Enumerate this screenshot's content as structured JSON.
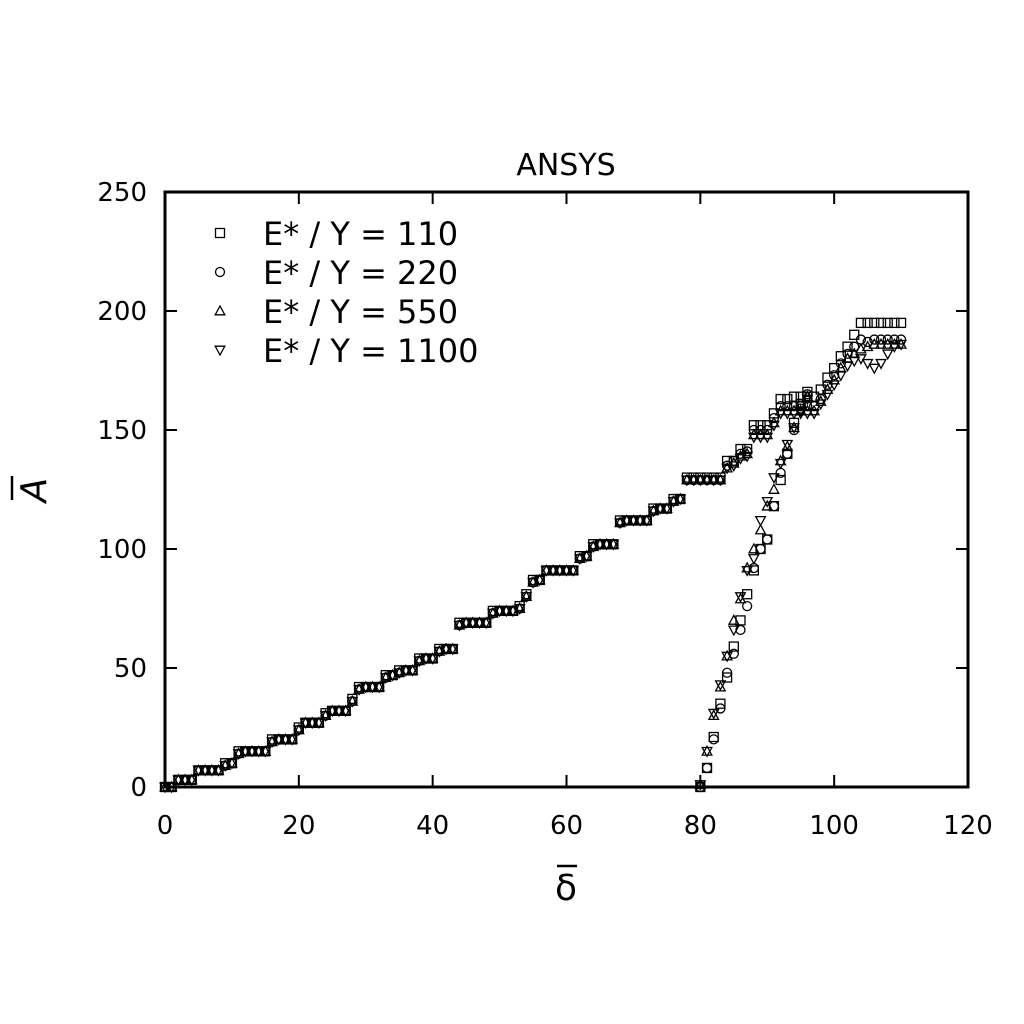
{
  "chart_data": {
    "type": "scatter",
    "title": "ANSYS",
    "xlabel": "δ",
    "ylabel": "A",
    "xlim": [
      0,
      120
    ],
    "ylim": [
      0,
      250
    ],
    "xticks": [
      0,
      20,
      40,
      60,
      80,
      100,
      120
    ],
    "yticks": [
      0,
      50,
      100,
      150,
      200,
      250
    ],
    "grid": false,
    "legend_position": "top-left",
    "series": [
      {
        "name": "E* / Y = 110",
        "marker": "square",
        "loading_x": [
          0,
          1,
          2,
          3,
          4,
          5,
          6,
          7,
          8,
          9,
          10,
          11,
          12,
          13,
          14,
          15,
          16,
          17,
          18,
          19,
          20,
          21,
          22,
          23,
          24,
          25,
          26,
          27,
          28,
          29,
          30,
          31,
          32,
          33,
          34,
          35,
          36,
          37,
          38,
          39,
          40,
          41,
          42,
          43,
          44,
          45,
          46,
          47,
          48,
          49,
          50,
          51,
          52,
          53,
          54,
          55,
          56,
          57,
          58,
          59,
          60,
          61,
          62,
          63,
          64,
          65,
          66,
          67,
          68,
          69,
          70,
          71,
          72,
          73,
          74,
          75,
          76,
          77,
          78,
          79,
          80,
          81,
          82,
          83,
          84,
          85,
          86,
          87,
          88,
          89,
          90,
          91,
          92,
          93,
          94,
          95,
          96,
          97,
          98,
          99,
          100,
          101,
          102,
          103,
          104,
          105,
          106,
          107,
          108,
          109,
          110
        ],
        "loading_y": [
          0,
          0,
          3,
          3,
          3,
          7,
          7,
          7,
          7,
          10,
          10,
          15,
          15,
          15,
          15,
          15,
          20,
          20,
          20,
          20,
          25,
          27,
          27,
          27,
          31,
          32,
          32,
          32,
          37,
          42,
          42,
          42,
          42,
          47,
          47,
          49,
          49,
          49,
          54,
          54,
          54,
          58,
          58,
          58,
          69,
          69,
          69,
          69,
          69,
          74,
          74,
          74,
          74,
          76,
          81,
          87,
          87,
          91,
          91,
          91,
          91,
          91,
          97,
          97,
          102,
          102,
          102,
          102,
          112,
          112,
          112,
          112,
          112,
          117,
          117,
          117,
          121,
          121,
          130,
          130,
          130,
          130,
          130,
          130,
          137,
          137,
          142,
          142,
          152,
          152,
          152,
          157,
          163,
          163,
          164,
          164,
          164,
          164,
          167,
          172,
          176,
          181,
          185,
          190,
          195,
          195,
          195,
          195,
          195,
          195,
          195
        ],
        "unloading_x": [
          80,
          81,
          82,
          83,
          84,
          85,
          86,
          87,
          88,
          89,
          90,
          91,
          92,
          93,
          94,
          95,
          96
        ],
        "unloading_y": [
          0,
          8,
          21,
          35,
          46,
          59,
          70,
          81,
          91,
          100,
          104,
          118,
          129,
          140,
          153,
          161,
          166
        ]
      },
      {
        "name": "E* / Y = 220",
        "marker": "circle",
        "loading_x": [
          0,
          1,
          2,
          3,
          4,
          5,
          6,
          7,
          8,
          9,
          10,
          11,
          12,
          13,
          14,
          15,
          16,
          17,
          18,
          19,
          20,
          21,
          22,
          23,
          24,
          25,
          26,
          27,
          28,
          29,
          30,
          31,
          32,
          33,
          34,
          35,
          36,
          37,
          38,
          39,
          40,
          41,
          42,
          43,
          44,
          45,
          46,
          47,
          48,
          49,
          50,
          51,
          52,
          53,
          54,
          55,
          56,
          57,
          58,
          59,
          60,
          61,
          62,
          63,
          64,
          65,
          66,
          67,
          68,
          69,
          70,
          71,
          72,
          73,
          74,
          75,
          76,
          77,
          78,
          79,
          80,
          81,
          82,
          83,
          84,
          85,
          86,
          87,
          88,
          89,
          90,
          91,
          92,
          93,
          94,
          95,
          96,
          97,
          98,
          99,
          100,
          101,
          102,
          103,
          104,
          105,
          106,
          107,
          108,
          109,
          110
        ],
        "loading_y": [
          0,
          0,
          3,
          3,
          3,
          7,
          7,
          7,
          7,
          9,
          10,
          14,
          15,
          15,
          15,
          15,
          19,
          20,
          20,
          20,
          24,
          27,
          27,
          27,
          30,
          32,
          32,
          32,
          36,
          41,
          42,
          42,
          42,
          46,
          47,
          48,
          49,
          49,
          53,
          54,
          54,
          57,
          58,
          58,
          68,
          69,
          69,
          69,
          69,
          73,
          74,
          74,
          74,
          75,
          80,
          86,
          87,
          91,
          91,
          91,
          91,
          91,
          96,
          97,
          101,
          102,
          102,
          102,
          111,
          112,
          112,
          112,
          112,
          116,
          117,
          117,
          120,
          121,
          129,
          129,
          129,
          129,
          129,
          129,
          135,
          137,
          140,
          141,
          150,
          150,
          150,
          155,
          160,
          160,
          160,
          160,
          160,
          160,
          163,
          169,
          173,
          178,
          182,
          185,
          188,
          187,
          188,
          188,
          188,
          188,
          188
        ],
        "unloading_x": [
          80,
          81,
          82,
          83,
          84,
          85,
          86,
          87,
          88,
          89,
          90,
          91,
          92,
          93,
          94,
          95,
          96
        ],
        "unloading_y": [
          0,
          8,
          20,
          33,
          48,
          56,
          66,
          76,
          92,
          100,
          104,
          118,
          132,
          140,
          150,
          159,
          165
        ]
      },
      {
        "name": "E* / Y = 550",
        "marker": "triangle-up",
        "loading_x": [
          0,
          1,
          2,
          3,
          4,
          5,
          6,
          7,
          8,
          9,
          10,
          11,
          12,
          13,
          14,
          15,
          16,
          17,
          18,
          19,
          20,
          21,
          22,
          23,
          24,
          25,
          26,
          27,
          28,
          29,
          30,
          31,
          32,
          33,
          34,
          35,
          36,
          37,
          38,
          39,
          40,
          41,
          42,
          43,
          44,
          45,
          46,
          47,
          48,
          49,
          50,
          51,
          52,
          53,
          54,
          55,
          56,
          57,
          58,
          59,
          60,
          61,
          62,
          63,
          64,
          65,
          66,
          67,
          68,
          69,
          70,
          71,
          72,
          73,
          74,
          75,
          76,
          77,
          78,
          79,
          80,
          81,
          82,
          83,
          84,
          85,
          86,
          87,
          88,
          89,
          90,
          91,
          92,
          93,
          94,
          95,
          96,
          97,
          98,
          99,
          100,
          101,
          102,
          103,
          104,
          105,
          106,
          107,
          108,
          109,
          110
        ],
        "loading_y": [
          0,
          0,
          3,
          3,
          3,
          7,
          7,
          7,
          7,
          9,
          10,
          14,
          15,
          15,
          15,
          15,
          19,
          20,
          20,
          20,
          24,
          27,
          27,
          27,
          30,
          32,
          32,
          32,
          36,
          41,
          42,
          42,
          42,
          46,
          47,
          48,
          49,
          49,
          53,
          54,
          54,
          57,
          58,
          58,
          68,
          69,
          69,
          69,
          69,
          73,
          74,
          74,
          74,
          75,
          80,
          86,
          87,
          91,
          91,
          91,
          91,
          91,
          96,
          97,
          101,
          102,
          102,
          102,
          111,
          112,
          112,
          112,
          112,
          116,
          117,
          117,
          120,
          121,
          129,
          129,
          129,
          129,
          129,
          129,
          134,
          136,
          139,
          140,
          148,
          148,
          148,
          153,
          158,
          158,
          158,
          158,
          158,
          158,
          162,
          167,
          171,
          176,
          180,
          182,
          184,
          185,
          186,
          186,
          186,
          186,
          186
        ],
        "unloading_x": [
          80,
          81,
          82,
          83,
          84,
          85,
          86,
          87,
          88,
          89,
          90,
          91,
          92,
          93,
          94,
          95,
          96
        ],
        "unloading_y": [
          1,
          15,
          30,
          42,
          55,
          70,
          79,
          92,
          100,
          108,
          118,
          125,
          137,
          143,
          151,
          158,
          164
        ]
      },
      {
        "name": "E* / Y = 1100",
        "marker": "triangle-down",
        "loading_x": [
          0,
          1,
          2,
          3,
          4,
          5,
          6,
          7,
          8,
          9,
          10,
          11,
          12,
          13,
          14,
          15,
          16,
          17,
          18,
          19,
          20,
          21,
          22,
          23,
          24,
          25,
          26,
          27,
          28,
          29,
          30,
          31,
          32,
          33,
          34,
          35,
          36,
          37,
          38,
          39,
          40,
          41,
          42,
          43,
          44,
          45,
          46,
          47,
          48,
          49,
          50,
          51,
          52,
          53,
          54,
          55,
          56,
          57,
          58,
          59,
          60,
          61,
          62,
          63,
          64,
          65,
          66,
          67,
          68,
          69,
          70,
          71,
          72,
          73,
          74,
          75,
          76,
          77,
          78,
          79,
          80,
          81,
          82,
          83,
          84,
          85,
          86,
          87,
          88,
          89,
          90,
          91,
          92,
          93,
          94,
          95,
          96,
          97,
          98,
          99,
          100,
          101,
          102,
          103,
          104,
          105,
          106,
          107,
          108,
          109,
          110
        ],
        "loading_y": [
          0,
          0,
          3,
          3,
          3,
          7,
          7,
          7,
          7,
          9,
          10,
          14,
          15,
          15,
          15,
          15,
          19,
          20,
          20,
          20,
          24,
          27,
          27,
          27,
          30,
          32,
          32,
          32,
          36,
          41,
          42,
          42,
          42,
          46,
          47,
          48,
          49,
          49,
          53,
          54,
          54,
          57,
          58,
          58,
          68,
          69,
          69,
          69,
          69,
          73,
          74,
          74,
          74,
          75,
          80,
          86,
          87,
          91,
          91,
          91,
          91,
          91,
          96,
          97,
          101,
          102,
          102,
          102,
          111,
          112,
          112,
          112,
          112,
          116,
          117,
          117,
          120,
          121,
          129,
          129,
          129,
          129,
          129,
          129,
          134,
          135,
          138,
          139,
          147,
          147,
          147,
          152,
          157,
          157,
          157,
          157,
          157,
          157,
          161,
          165,
          169,
          173,
          177,
          179,
          180,
          178,
          176,
          178,
          182,
          185,
          186
        ],
        "unloading_x": [
          80,
          81,
          82,
          83,
          84,
          85,
          86,
          87,
          88,
          89,
          90,
          91,
          92,
          93,
          94,
          95,
          96
        ],
        "unloading_y": [
          1,
          15,
          31,
          43,
          55,
          66,
          80,
          91,
          96,
          112,
          120,
          130,
          136,
          144,
          151,
          158,
          163
        ]
      }
    ]
  }
}
